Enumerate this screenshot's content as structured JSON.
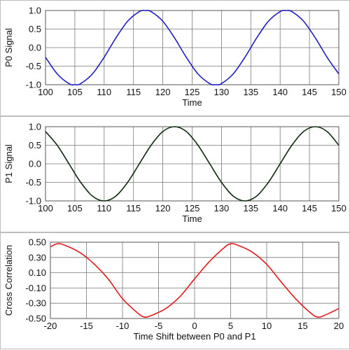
{
  "chart_data": [
    {
      "type": "line",
      "xlabel": "Time",
      "ylabel": "P0 Signal",
      "xlim": [
        100,
        150
      ],
      "ylim": [
        -1.0,
        1.0
      ],
      "xticks": [
        "100",
        "105",
        "110",
        "115",
        "120",
        "125",
        "130",
        "135",
        "140",
        "145",
        "150"
      ],
      "xtick_values": [
        100,
        105,
        110,
        115,
        120,
        125,
        130,
        135,
        140,
        145,
        150
      ],
      "yticks": [
        "1.0",
        "0.5",
        "0.0",
        "-0.5",
        "-1.0"
      ],
      "ytick_values": [
        1.0,
        0.5,
        0.0,
        -0.5,
        -1.0
      ],
      "grid": true,
      "series": [
        {
          "color": "#1f1fbf",
          "x": [
            100,
            102,
            104,
            105,
            106,
            108,
            110,
            112,
            114,
            116,
            117,
            118,
            120,
            122,
            124,
            126,
            128,
            129,
            130,
            132,
            134,
            136,
            138,
            140,
            141,
            142,
            144,
            146,
            148,
            150
          ],
          "y": [
            -0.26,
            -0.71,
            -0.97,
            -1.0,
            -0.97,
            -0.71,
            -0.26,
            0.26,
            0.71,
            0.97,
            1.0,
            0.97,
            0.71,
            0.26,
            -0.26,
            -0.71,
            -0.97,
            -1.0,
            -0.97,
            -0.71,
            -0.26,
            0.26,
            0.71,
            0.97,
            1.0,
            0.97,
            0.71,
            0.26,
            -0.26,
            -0.71
          ]
        }
      ]
    },
    {
      "type": "line",
      "xlabel": "Time",
      "ylabel": "P1 Signal",
      "xlim": [
        100,
        150
      ],
      "ylim": [
        -1.0,
        1.0
      ],
      "xticks": [
        "100",
        "105",
        "110",
        "115",
        "120",
        "125",
        "130",
        "135",
        "140",
        "145",
        "150"
      ],
      "xtick_values": [
        100,
        105,
        110,
        115,
        120,
        125,
        130,
        135,
        140,
        145,
        150
      ],
      "yticks": [
        "1.0",
        "0.5",
        "0.0",
        "-0.5",
        "-1.0"
      ],
      "ytick_values": [
        1.0,
        0.5,
        0.0,
        -0.5,
        -1.0
      ],
      "grid": true,
      "series": [
        {
          "color": "#0d2a0d",
          "x": [
            100,
            102,
            104,
            106,
            108,
            110,
            112,
            114,
            116,
            118,
            120,
            122,
            124,
            126,
            128,
            130,
            132,
            134,
            136,
            138,
            140,
            142,
            144,
            146,
            148,
            150
          ],
          "y": [
            0.87,
            0.5,
            0.0,
            -0.5,
            -0.87,
            -1.0,
            -0.87,
            -0.5,
            0.0,
            0.5,
            0.87,
            1.0,
            0.87,
            0.5,
            0.0,
            -0.5,
            -0.87,
            -1.0,
            -0.87,
            -0.5,
            0.0,
            0.5,
            0.87,
            1.0,
            0.87,
            0.5
          ]
        }
      ]
    },
    {
      "type": "line",
      "xlabel": "Time Shift between P0 and P1",
      "ylabel": "Cross Correlation",
      "xlim": [
        -20,
        20
      ],
      "ylim": [
        -0.5,
        0.5
      ],
      "xticks": [
        "-20",
        "-15",
        "-10",
        "-5",
        "0",
        "5",
        "10",
        "15",
        "20"
      ],
      "xtick_values": [
        -20,
        -15,
        -10,
        -5,
        0,
        5,
        10,
        15,
        20
      ],
      "yticks": [
        "0.50",
        "0.30",
        "0.10",
        "-0.10",
        "-0.30",
        "-0.50"
      ],
      "ytick_values": [
        0.5,
        0.3,
        0.1,
        -0.1,
        -0.3,
        -0.5
      ],
      "grid": true,
      "series": [
        {
          "color": "#e01b1b",
          "x": [
            -20,
            -19,
            -18,
            -16,
            -14,
            -12,
            -10,
            -8,
            -7,
            -6,
            -4,
            -2,
            0,
            2,
            4,
            5,
            6,
            8,
            10,
            12,
            14,
            16,
            17,
            18,
            20
          ],
          "y": [
            0.44,
            0.48,
            0.46,
            0.37,
            0.22,
            0.02,
            -0.24,
            -0.42,
            -0.48,
            -0.46,
            -0.37,
            -0.21,
            0.02,
            0.24,
            0.42,
            0.48,
            0.46,
            0.37,
            0.21,
            -0.02,
            -0.24,
            -0.42,
            -0.48,
            -0.46,
            -0.37
          ]
        }
      ]
    }
  ]
}
